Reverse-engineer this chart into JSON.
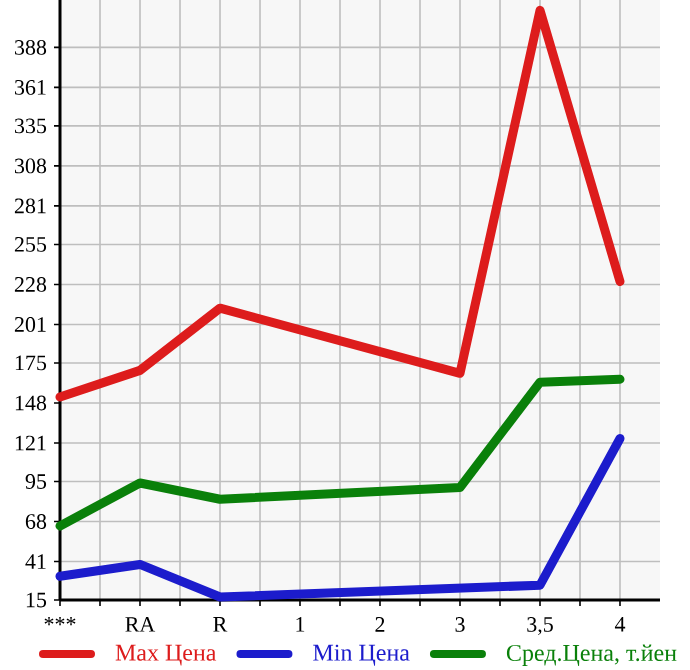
{
  "chart_data": {
    "type": "line",
    "categories": [
      "***",
      "RA",
      "R",
      "1",
      "2",
      "3",
      "3,5",
      "4"
    ],
    "series": [
      {
        "name": "Max Цена",
        "color": "#dd1c1c",
        "values": [
          152,
          170,
          212,
          null,
          null,
          168,
          413,
          230
        ]
      },
      {
        "name": "Min Цена",
        "color": "#1c1ccc",
        "values": [
          31,
          39,
          17,
          null,
          null,
          null,
          25,
          124
        ]
      },
      {
        "name": "Сред.Цена, т.йен",
        "color": "#0a800a",
        "values": [
          65,
          94,
          83,
          null,
          null,
          91,
          162,
          164
        ]
      }
    ],
    "ylim": [
      15,
      420
    ],
    "yticks": [
      15,
      41,
      68,
      95,
      121,
      148,
      175,
      201,
      228,
      255,
      281,
      308,
      335,
      361,
      388
    ],
    "grid": true,
    "legend": "bottom",
    "marker": "none",
    "line_style": "solid"
  }
}
